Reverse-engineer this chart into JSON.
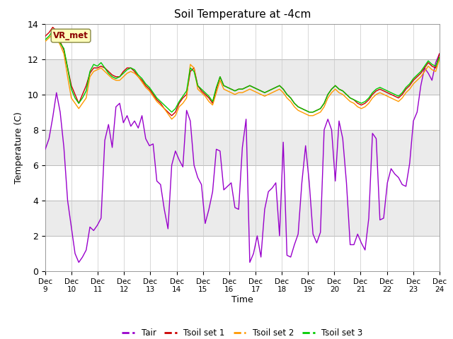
{
  "title": "Soil Temperature at -4cm",
  "xlabel": "Time",
  "ylabel": "Temperature (C)",
  "ylim": [
    0,
    14
  ],
  "xlim": [
    0,
    360
  ],
  "background_color": "#ffffff",
  "band_pairs": [
    [
      0,
      2
    ],
    [
      4,
      6
    ],
    [
      8,
      10
    ],
    [
      12,
      14
    ]
  ],
  "band_color_light": "#ebebeb",
  "xtick_labels": [
    "Dec 9",
    "Dec 10",
    "Dec 11",
    "Dec 12",
    "Dec 13",
    "Dec 14",
    "Dec 15",
    "Dec 16",
    "Dec 17",
    "Dec 18",
    "Dec 19",
    "Dec 20",
    "Dec 21",
    "Dec 22",
    "Dec 23",
    "Dec 24"
  ],
  "xtick_positions": [
    0,
    24,
    48,
    72,
    96,
    120,
    144,
    168,
    192,
    216,
    240,
    264,
    288,
    312,
    336,
    360
  ],
  "vr_met_label": "VR_met",
  "legend_labels": [
    "Tair",
    "Tsoil set 1",
    "Tsoil set 2",
    "Tsoil set 3"
  ],
  "colors": {
    "Tair": "#9900cc",
    "Tsoil1": "#cc0000",
    "Tsoil2": "#ff9900",
    "Tsoil3": "#00cc00"
  },
  "tair": [
    6.9,
    7.5,
    8.7,
    10.1,
    9.0,
    7.0,
    4.0,
    2.5,
    1.0,
    0.5,
    0.8,
    1.2,
    2.5,
    2.3,
    2.6,
    3.0,
    7.4,
    8.3,
    7.0,
    9.3,
    9.5,
    8.4,
    8.8,
    8.2,
    8.5,
    8.1,
    8.8,
    7.5,
    7.1,
    7.2,
    5.1,
    4.9,
    3.5,
    2.4,
    6.0,
    6.8,
    6.3,
    5.9,
    9.1,
    8.5,
    6.0,
    5.3,
    4.9,
    2.7,
    3.5,
    4.5,
    6.9,
    6.8,
    4.6,
    4.8,
    5.0,
    3.6,
    3.5,
    7.0,
    8.6,
    0.5,
    1.0,
    2.0,
    0.8,
    3.5,
    4.5,
    4.7,
    5.0,
    2.0,
    7.3,
    0.9,
    0.8,
    1.5,
    2.1,
    5.0,
    7.1,
    5.0,
    2.1,
    1.6,
    2.2,
    8.0,
    8.6,
    8.0,
    5.1,
    8.5,
    7.5,
    5.0,
    1.5,
    1.5,
    2.1,
    1.6,
    1.2,
    3.0,
    7.8,
    7.5,
    2.9,
    3.0,
    5.0,
    5.8,
    5.5,
    5.3,
    4.9,
    4.8,
    6.1,
    8.5,
    9.0,
    10.5,
    11.5,
    11.2,
    10.8,
    11.8,
    12.3
  ],
  "tsoil1": [
    13.3,
    13.5,
    13.8,
    13.6,
    13.0,
    12.5,
    11.5,
    10.5,
    10.0,
    9.5,
    10.0,
    10.5,
    11.2,
    11.5,
    11.5,
    11.6,
    11.5,
    11.3,
    11.1,
    11.0,
    11.0,
    11.3,
    11.5,
    11.5,
    11.3,
    11.0,
    10.8,
    10.5,
    10.3,
    10.0,
    9.7,
    9.5,
    9.2,
    9.0,
    8.8,
    9.0,
    9.5,
    9.8,
    10.0,
    11.3,
    11.5,
    10.5,
    10.2,
    10.0,
    9.8,
    9.5,
    10.3,
    11.0,
    10.5,
    10.4,
    10.3,
    10.2,
    10.3,
    10.3,
    10.4,
    10.5,
    10.4,
    10.3,
    10.2,
    10.1,
    10.2,
    10.3,
    10.4,
    10.5,
    10.3,
    10.0,
    9.8,
    9.5,
    9.3,
    9.2,
    9.1,
    9.0,
    9.0,
    9.1,
    9.2,
    9.5,
    10.0,
    10.3,
    10.5,
    10.3,
    10.2,
    10.0,
    9.8,
    9.7,
    9.5,
    9.4,
    9.5,
    9.7,
    10.0,
    10.2,
    10.3,
    10.2,
    10.1,
    10.0,
    9.9,
    9.8,
    10.0,
    10.3,
    10.5,
    10.8,
    11.0,
    11.2,
    11.5,
    11.8,
    11.6,
    11.5,
    12.3
  ],
  "tsoil2": [
    13.0,
    13.2,
    13.4,
    13.2,
    12.8,
    12.3,
    11.0,
    9.8,
    9.5,
    9.2,
    9.5,
    9.8,
    11.0,
    11.3,
    11.4,
    11.5,
    11.3,
    11.1,
    10.9,
    10.8,
    10.8,
    11.0,
    11.2,
    11.3,
    11.2,
    11.0,
    10.7,
    10.4,
    10.2,
    9.9,
    9.6,
    9.4,
    9.2,
    8.9,
    8.6,
    8.8,
    9.3,
    9.5,
    9.8,
    11.7,
    11.5,
    10.3,
    10.1,
    9.9,
    9.6,
    9.4,
    10.1,
    10.8,
    10.3,
    10.2,
    10.1,
    10.0,
    10.1,
    10.1,
    10.2,
    10.3,
    10.2,
    10.1,
    10.0,
    9.9,
    10.0,
    10.1,
    10.2,
    10.3,
    10.1,
    9.8,
    9.6,
    9.3,
    9.1,
    9.0,
    8.9,
    8.8,
    8.8,
    8.9,
    9.0,
    9.3,
    9.8,
    10.1,
    10.3,
    10.1,
    10.0,
    9.8,
    9.6,
    9.5,
    9.3,
    9.2,
    9.3,
    9.5,
    9.8,
    10.0,
    10.1,
    10.0,
    9.9,
    9.8,
    9.7,
    9.6,
    9.8,
    10.1,
    10.3,
    10.6,
    10.8,
    11.0,
    11.3,
    11.6,
    11.4,
    11.3,
    12.0
  ],
  "tsoil3": [
    13.1,
    13.3,
    13.6,
    13.5,
    12.9,
    12.6,
    11.5,
    10.3,
    9.8,
    9.5,
    9.8,
    10.2,
    11.3,
    11.7,
    11.6,
    11.8,
    11.5,
    11.2,
    11.0,
    10.9,
    11.0,
    11.2,
    11.4,
    11.5,
    11.4,
    11.1,
    10.9,
    10.6,
    10.4,
    10.1,
    9.8,
    9.6,
    9.4,
    9.2,
    9.0,
    9.2,
    9.6,
    9.9,
    10.2,
    11.5,
    11.3,
    10.5,
    10.3,
    10.1,
    9.9,
    9.6,
    10.4,
    11.0,
    10.5,
    10.4,
    10.3,
    10.2,
    10.3,
    10.3,
    10.4,
    10.5,
    10.4,
    10.3,
    10.2,
    10.1,
    10.2,
    10.3,
    10.4,
    10.5,
    10.3,
    10.0,
    9.8,
    9.5,
    9.3,
    9.2,
    9.1,
    9.0,
    9.0,
    9.1,
    9.2,
    9.5,
    10.0,
    10.3,
    10.5,
    10.3,
    10.2,
    10.0,
    9.8,
    9.7,
    9.6,
    9.5,
    9.6,
    9.8,
    10.1,
    10.3,
    10.4,
    10.3,
    10.2,
    10.1,
    10.0,
    9.9,
    10.1,
    10.4,
    10.6,
    10.9,
    11.1,
    11.3,
    11.6,
    11.9,
    11.7,
    11.6,
    12.1
  ]
}
